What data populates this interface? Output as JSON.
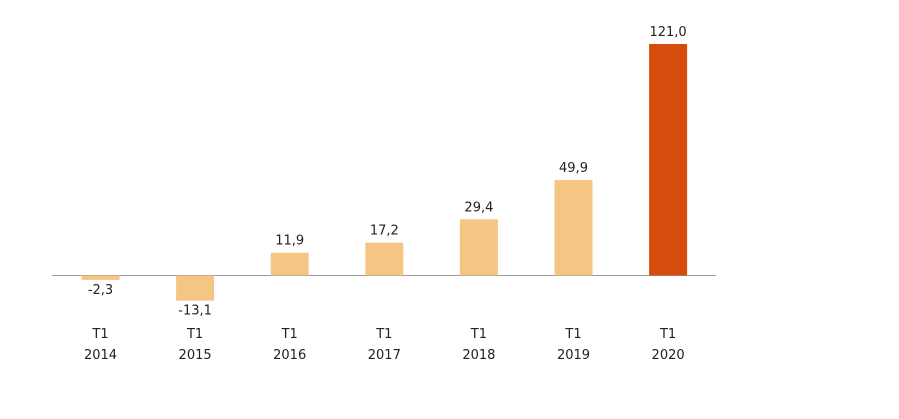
{
  "chart_data": {
    "type": "bar",
    "categories": [
      [
        "T1",
        "2014"
      ],
      [
        "T1",
        "2015"
      ],
      [
        "T1",
        "2016"
      ],
      [
        "T1",
        "2017"
      ],
      [
        "T1",
        "2018"
      ],
      [
        "T1",
        "2019"
      ],
      [
        "T1",
        "2020"
      ]
    ],
    "values": [
      -2.3,
      -13.1,
      11.9,
      17.2,
      29.4,
      49.9,
      121.0
    ],
    "value_labels": [
      "-2,3",
      "-13,1",
      "11,9",
      "17,2",
      "29,4",
      "49,9",
      "121,0"
    ],
    "ylim": [
      -13.1,
      121.0
    ],
    "grid": false,
    "legend": "none",
    "colors": {
      "default_bar": "#f5c584",
      "highlight_bar": "#d64c0d",
      "axis_line": "#999999",
      "text": "#222222"
    },
    "highlight_index": 6
  }
}
